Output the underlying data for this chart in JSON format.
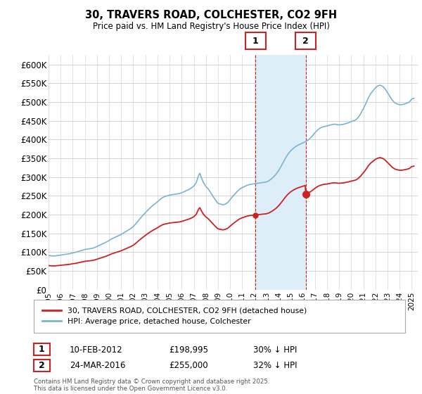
{
  "title1": "30, TRAVERS ROAD, COLCHESTER, CO2 9FH",
  "title2": "Price paid vs. HM Land Registry's House Price Index (HPI)",
  "ylim": [
    0,
    625000
  ],
  "yticks": [
    0,
    50000,
    100000,
    150000,
    200000,
    250000,
    300000,
    350000,
    400000,
    450000,
    500000,
    550000,
    600000
  ],
  "ytick_labels": [
    "£0",
    "£50K",
    "£100K",
    "£150K",
    "£200K",
    "£250K",
    "£300K",
    "£350K",
    "£400K",
    "£450K",
    "£500K",
    "£550K",
    "£600K"
  ],
  "hpi_color": "#7ab3d4",
  "price_color": "#cc2222",
  "annotation1": {
    "label": "1",
    "date": "10-FEB-2012",
    "price": "£198,995",
    "pct": "30% ↓ HPI"
  },
  "annotation2": {
    "label": "2",
    "date": "24-MAR-2016",
    "price": "£255,000",
    "pct": "32% ↓ HPI"
  },
  "legend1": "30, TRAVERS ROAD, COLCHESTER, CO2 9FH (detached house)",
  "legend2": "HPI: Average price, detached house, Colchester",
  "footer": "Contains HM Land Registry data © Crown copyright and database right 2025.\nThis data is licensed under the Open Government Licence v3.0.",
  "background_color": "#ffffff",
  "shade_color": "#ddeef8",
  "vline_color": "#cc2222",
  "sale1_year": 2012.1,
  "sale1_price": 198995,
  "sale2_year": 2016.25,
  "sale2_price": 255000,
  "xlim_start": 1995,
  "xlim_end": 2025.5
}
